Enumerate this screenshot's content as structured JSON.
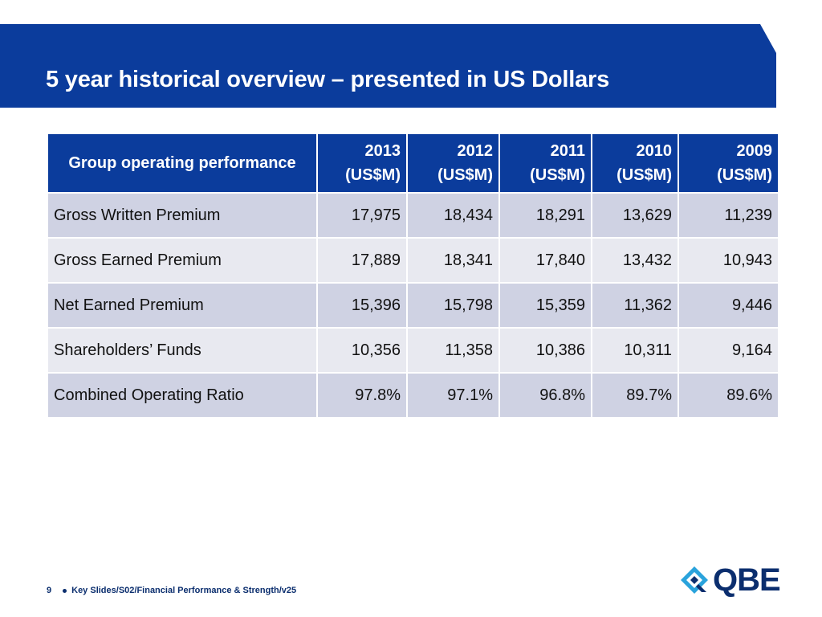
{
  "slide": {
    "title": "5 year historical overview – presented in US Dollars"
  },
  "table": {
    "header": {
      "metric": "Group operating performance",
      "years": [
        {
          "year": "2013",
          "unit": "(US$M)"
        },
        {
          "year": "2012",
          "unit": "(US$M)"
        },
        {
          "year": "2011",
          "unit": "(US$M)"
        },
        {
          "year": "2010",
          "unit": "(US$M)"
        },
        {
          "year": "2009",
          "unit": "(US$M)"
        }
      ]
    },
    "rows": [
      {
        "label": "Gross Written Premium",
        "values": [
          "17,975",
          "18,434",
          "18,291",
          "13,629",
          "11,239"
        ]
      },
      {
        "label": "Gross Earned Premium",
        "values": [
          "17,889",
          "18,341",
          "17,840",
          "13,432",
          "10,943"
        ]
      },
      {
        "label": "Net Earned Premium",
        "values": [
          "15,396",
          "15,798",
          "15,359",
          "11,362",
          "9,446"
        ]
      },
      {
        "label": "Shareholders’ Funds",
        "values": [
          "10,356",
          "11,358",
          "10,386",
          "10,311",
          "9,164"
        ]
      },
      {
        "label": "Combined Operating Ratio",
        "values": [
          "97.8%",
          "97.1%",
          "96.8%",
          "89.7%",
          "89.6%"
        ]
      }
    ]
  },
  "footer": {
    "page_number": "9",
    "path": "Key Slides/S02/Financial Performance & Strength/v25"
  },
  "logo": {
    "text": "QBE",
    "icon": "qbe-diamond-logo-icon"
  },
  "colors": {
    "brand_blue": "#0b3c9c",
    "row_dark": "#cfd2e3",
    "row_light": "#e8e9f0",
    "logo_navy": "#0b2e6e",
    "logo_cyan": "#2aa3dc"
  }
}
